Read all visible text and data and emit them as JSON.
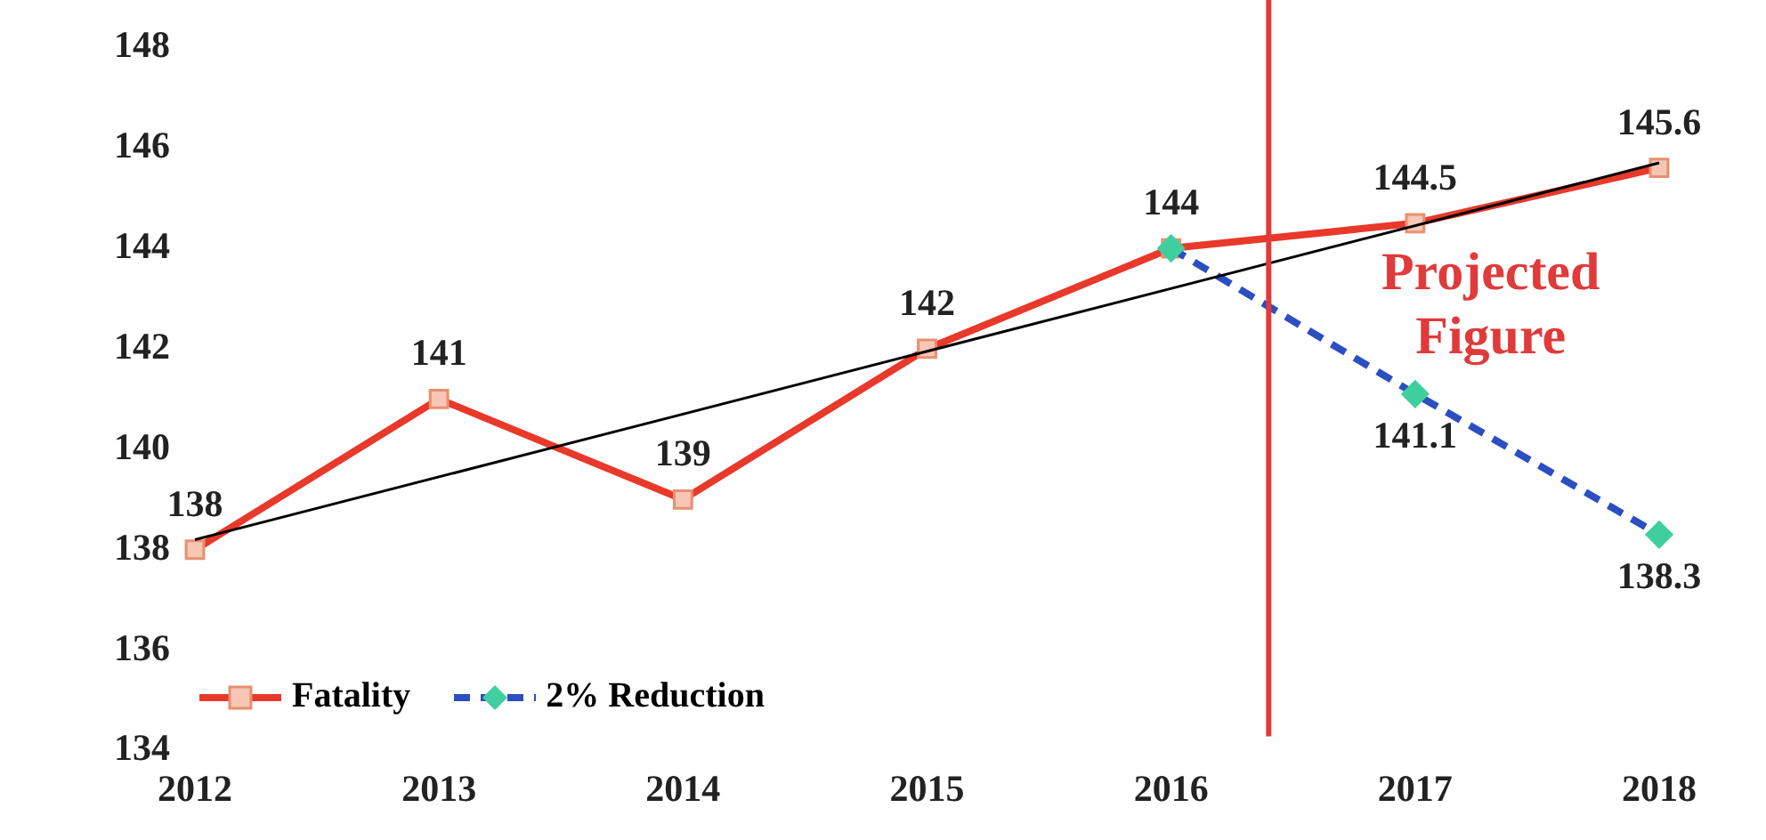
{
  "chart_data": {
    "type": "line",
    "x": [
      2012,
      2013,
      2014,
      2015,
      2016,
      2017,
      2018
    ],
    "xlim": [
      2012,
      2018
    ],
    "xticks": [
      2012,
      2013,
      2014,
      2015,
      2016,
      2017,
      2018
    ],
    "ylim": [
      134,
      148
    ],
    "yticks": [
      134,
      136,
      138,
      140,
      142,
      144,
      146,
      148
    ],
    "grid": false,
    "legend": "bottom left",
    "series": [
      {
        "name": "Fatality",
        "color": "#e8392b",
        "marker": "square",
        "colors": [
          "#f7c6b4",
          "#f7c6b4",
          "#f7c6b4",
          "#f7c6b4",
          "#f7c6b4",
          "#f7c6b4",
          "#f7c6b4"
        ],
        "line_style": "solid",
        "values": [
          138,
          141,
          139,
          142,
          144,
          144.5,
          145.6
        ],
        "value_labels": [
          "138",
          "141",
          "139",
          "142",
          "144",
          "144.5",
          "145.6"
        ]
      },
      {
        "name": "2% Reduction",
        "color": "#2b4fc0",
        "marker": "diamond",
        "colors": [
          null,
          null,
          null,
          null,
          "#3fcf9f",
          "#3fcf9f",
          "#3fcf9f"
        ],
        "line_style": "dashed",
        "values": [
          null,
          null,
          null,
          null,
          144,
          141.1,
          138.3
        ],
        "value_labels": [
          null,
          null,
          null,
          null,
          null,
          "141.1",
          "138.3"
        ]
      },
      {
        "type": "line",
        "color": "#000000",
        "marker": "none",
        "line_style": "solid",
        "x": [
          2012,
          2018
        ],
        "values": [
          138.2,
          145.7
        ]
      }
    ],
    "ref_lines": [
      {
        "axis": "x",
        "value": 2016.4,
        "color": "#e03a3a"
      }
    ],
    "annotations": [
      "Projected Figure"
    ]
  }
}
